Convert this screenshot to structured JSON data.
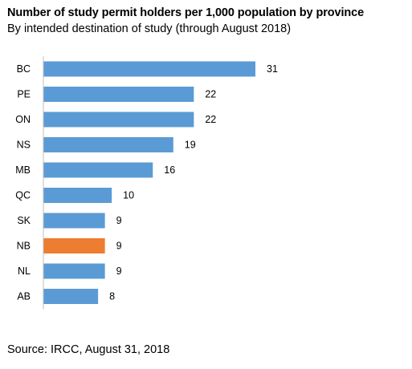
{
  "chart_data": {
    "type": "bar",
    "orientation": "horizontal",
    "title": "Number of study permit holders per 1,000 population by province",
    "subtitle": "By intended destination of study (through August 2018)",
    "categories": [
      "BC",
      "PE",
      "ON",
      "NS",
      "MB",
      "QC",
      "SK",
      "NB",
      "NL",
      "AB"
    ],
    "values": [
      31,
      22,
      22,
      19,
      16,
      10,
      9,
      9,
      9,
      8
    ],
    "data_labels": [
      "31",
      "22",
      "22",
      "19",
      "16",
      "10",
      "9",
      "9",
      "9",
      "8"
    ],
    "xlim": [
      0,
      31
    ],
    "grid": false,
    "legend": "none",
    "colors": {
      "bar": "#5b9bd5",
      "highlight": "#ed7d31",
      "axis": "#bfbfbf"
    },
    "highlight_category": "NB",
    "source": "Source: IRCC, August 31, 2018"
  }
}
